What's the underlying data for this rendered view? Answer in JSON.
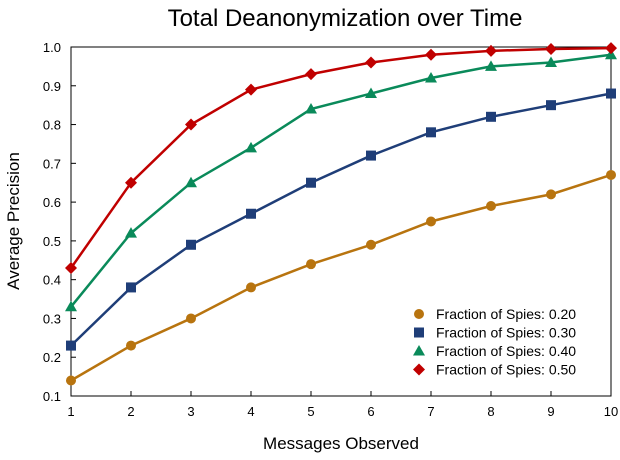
{
  "chart_data": {
    "type": "line",
    "title": "Total Deanonymization over Time",
    "xlabel": "Messages Observed",
    "ylabel": "Average Precision",
    "x": [
      1,
      2,
      3,
      4,
      5,
      6,
      7,
      8,
      9,
      10
    ],
    "xlim": [
      1,
      10
    ],
    "ylim": [
      0.1,
      1.0
    ],
    "xticks": [
      "1",
      "2",
      "3",
      "4",
      "5",
      "6",
      "7",
      "8",
      "9",
      "10"
    ],
    "yticks": [
      "0.1",
      "0.2",
      "0.3",
      "0.4",
      "0.5",
      "0.6",
      "0.7",
      "0.8",
      "0.9",
      "1.0"
    ],
    "grid": false,
    "legend_position": "bottom-right",
    "series": [
      {
        "name": "Fraction of Spies: 0.20",
        "color": "#B8740F",
        "marker": "circle",
        "values": [
          0.14,
          0.23,
          0.3,
          0.38,
          0.44,
          0.49,
          0.55,
          0.59,
          0.62,
          0.67
        ]
      },
      {
        "name": "Fraction of Spies: 0.30",
        "color": "#1F3E78",
        "marker": "square",
        "values": [
          0.23,
          0.38,
          0.49,
          0.57,
          0.65,
          0.72,
          0.78,
          0.82,
          0.85,
          0.88
        ]
      },
      {
        "name": "Fraction of Spies: 0.40",
        "color": "#0A8A5A",
        "marker": "triangle",
        "values": [
          0.33,
          0.52,
          0.65,
          0.74,
          0.84,
          0.88,
          0.92,
          0.95,
          0.96,
          0.98
        ]
      },
      {
        "name": "Fraction of Spies: 0.50",
        "color": "#C00000",
        "marker": "diamond",
        "values": [
          0.43,
          0.65,
          0.8,
          0.89,
          0.93,
          0.96,
          0.98,
          0.99,
          0.995,
          0.997
        ]
      }
    ]
  }
}
